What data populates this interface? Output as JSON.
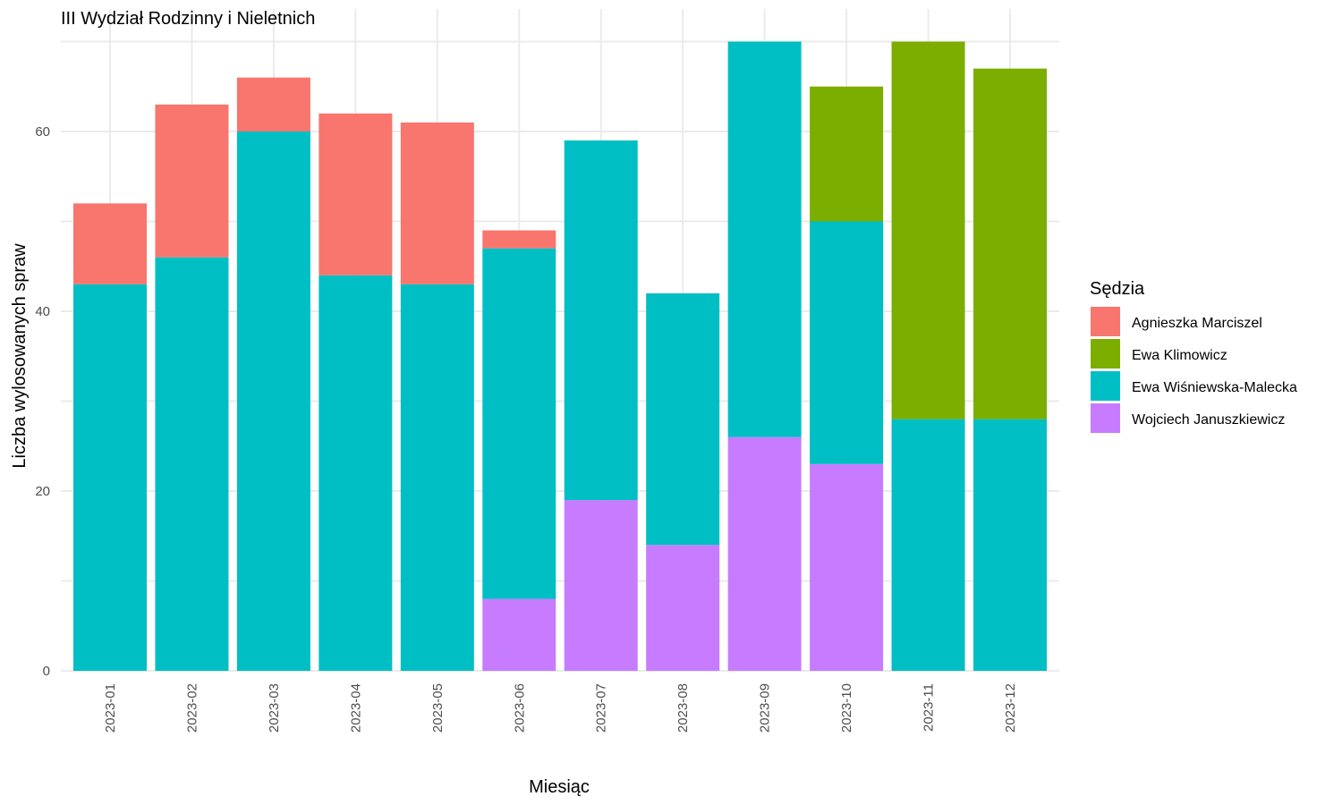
{
  "chart_data": {
    "type": "bar",
    "stacked": true,
    "title": "III Wydział Rodzinny i Nieletnich",
    "xlabel": "Miesiąc",
    "ylabel": "Liczba wylosowanych spraw",
    "ylim": [
      0,
      70
    ],
    "yticks": [
      0,
      20,
      40,
      60
    ],
    "grid": true,
    "legend_title": "Sędzia",
    "legend_position": "right",
    "categories": [
      "2023-01",
      "2023-02",
      "2023-03",
      "2023-04",
      "2023-05",
      "2023-06",
      "2023-07",
      "2023-08",
      "2023-09",
      "2023-10",
      "2023-11",
      "2023-12"
    ],
    "series": [
      {
        "name": "Agnieszka Marciszel",
        "color": "#F8766D",
        "values": [
          9,
          17,
          6,
          18,
          18,
          2,
          0,
          0,
          0,
          0,
          0,
          0
        ]
      },
      {
        "name": "Ewa Klimowicz",
        "color": "#7CAE00",
        "values": [
          0,
          0,
          0,
          0,
          0,
          0,
          0,
          0,
          0,
          15,
          42,
          39
        ]
      },
      {
        "name": "Ewa Wiśniewska-Malecka",
        "color": "#00BFC4",
        "values": [
          43,
          46,
          60,
          44,
          43,
          39,
          40,
          28,
          44,
          27,
          28,
          28
        ]
      },
      {
        "name": "Wojciech Januszkiewicz",
        "color": "#C77CFF",
        "values": [
          0,
          0,
          0,
          0,
          0,
          8,
          19,
          14,
          26,
          23,
          0,
          0
        ]
      }
    ],
    "stack_order_bottom_to_top": [
      "Wojciech Januszkiewicz",
      "Ewa Wiśniewska-Malecka",
      "Ewa Klimowicz",
      "Agnieszka Marciszel"
    ]
  }
}
